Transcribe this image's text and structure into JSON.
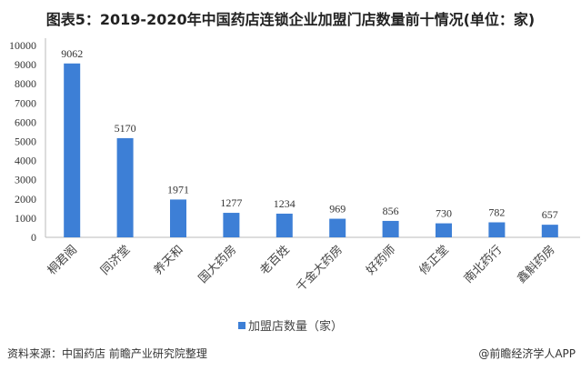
{
  "chart_data": {
    "type": "bar",
    "title": "图表5：2019-2020年中国药店连锁企业加盟门店数量前十情况(单位：家)",
    "categories": [
      "桐君阁",
      "同济堂",
      "养天和",
      "国大药房",
      "老百姓",
      "千金大药房",
      "好药师",
      "修正堂",
      "南北药行",
      "鑫斛药房"
    ],
    "series": [
      {
        "name": "加盟店数量（家）",
        "values": [
          9062,
          5170,
          1971,
          1277,
          1234,
          969,
          856,
          730,
          782,
          657
        ],
        "color": "#3d7fd6"
      }
    ],
    "ylim": [
      0,
      10000
    ],
    "yticks": [
      0,
      1000,
      2000,
      3000,
      4000,
      5000,
      6000,
      7000,
      8000,
      9000,
      10000
    ],
    "grid": false,
    "legend": "bottom"
  },
  "footer": {
    "source": "资料来源：中国药店 前瞻产业研究院整理",
    "credit": "@前瞻经济学人APP"
  }
}
